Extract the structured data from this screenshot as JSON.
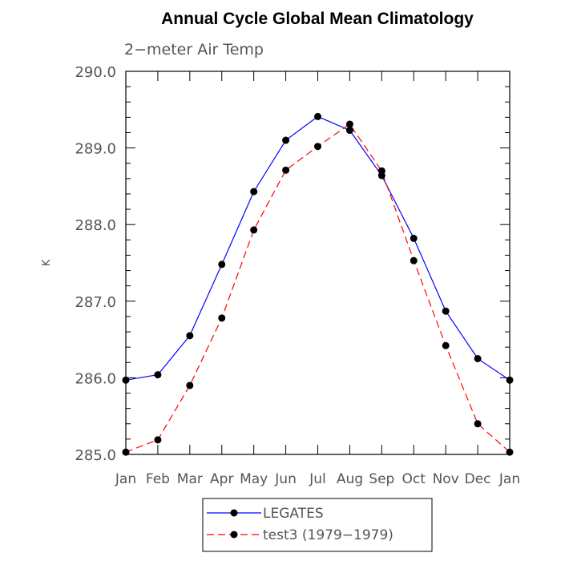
{
  "chart_data": {
    "type": "line",
    "title": "Annual Cycle Global Mean Climatology",
    "subtitle": "2−meter Air Temp",
    "xlabel": "",
    "ylabel": "K",
    "categories": [
      "Jan",
      "Feb",
      "Mar",
      "Apr",
      "May",
      "Jun",
      "Jul",
      "Aug",
      "Sep",
      "Oct",
      "Nov",
      "Dec",
      "Jan"
    ],
    "ylim": [
      285.0,
      290.0
    ],
    "yticks": [
      "285.0",
      "286.0",
      "287.0",
      "288.0",
      "289.0",
      "290.0"
    ],
    "grid": false,
    "legend_position": "bottom",
    "series": [
      {
        "name": "LEGATES",
        "color": "#0000ff",
        "line_style": "solid",
        "marker": "filled-circle",
        "values": [
          285.97,
          286.04,
          286.55,
          287.48,
          288.43,
          289.1,
          289.41,
          289.23,
          288.64,
          287.82,
          286.87,
          286.25,
          285.97
        ]
      },
      {
        "name": "test3 (1979−1979)",
        "color": "#ff0000",
        "line_style": "dashed",
        "marker": "filled-circle",
        "values": [
          285.03,
          285.19,
          285.9,
          286.78,
          287.93,
          288.71,
          289.02,
          289.31,
          288.7,
          287.53,
          286.42,
          285.4,
          285.03
        ]
      }
    ]
  }
}
